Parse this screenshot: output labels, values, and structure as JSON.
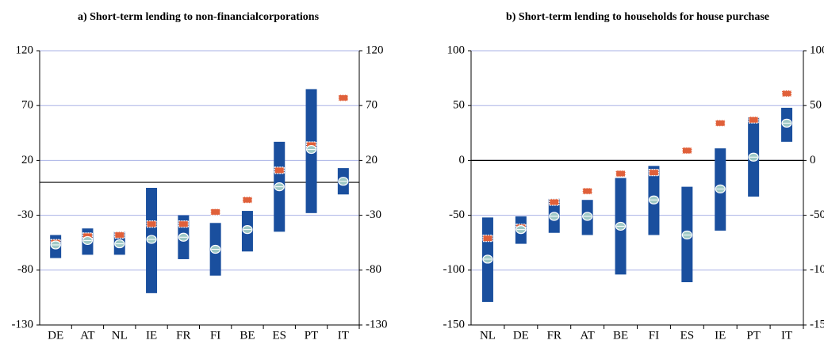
{
  "chart_data": [
    {
      "type": "range-bar",
      "title": "a) Short-term lending to non-financialcorporations",
      "categories": [
        "DE",
        "AT",
        "NL",
        "IE",
        "FR",
        "FI",
        "BE",
        "ES",
        "PT",
        "IT"
      ],
      "high": [
        -48,
        -42,
        -45,
        -5,
        -30,
        -37,
        -26,
        37,
        85,
        13
      ],
      "low": [
        -69,
        -66,
        -66,
        -101,
        -70,
        -85,
        -63,
        -45,
        -28,
        -11
      ],
      "bar_color": "#1a4f9e",
      "circle": {
        "color": "#9fc9c6",
        "values": [
          -57,
          -53,
          -56,
          -52,
          -50,
          -61,
          -43,
          -4,
          30,
          1
        ]
      },
      "marker": {
        "color": "#e0603a",
        "values": [
          -55,
          -49,
          -48,
          -38,
          -38,
          -27,
          -16,
          11,
          34,
          77
        ]
      },
      "ylim": [
        -130,
        120
      ],
      "yticks": [
        120,
        70,
        20,
        -30,
        -80,
        -130
      ],
      "grid": true
    },
    {
      "type": "range-bar",
      "title": "b) Short-term lending to households for house purchase",
      "categories": [
        "NL",
        "DE",
        "FR",
        "AT",
        "BE",
        "FI",
        "ES",
        "IE",
        "PT",
        "IT"
      ],
      "high": [
        -52,
        -51,
        -35,
        -36,
        -16,
        -5,
        -24,
        11,
        39,
        48
      ],
      "low": [
        -129,
        -76,
        -66,
        -68,
        -104,
        -68,
        -111,
        -64,
        -33,
        17
      ],
      "bar_color": "#1a4f9e",
      "circle": {
        "color": "#9fc9c6",
        "values": [
          -90,
          -63,
          -51,
          -51,
          -60,
          -36,
          -68,
          -26,
          3,
          34
        ]
      },
      "marker": {
        "color": "#e0603a",
        "values": [
          -71,
          -61,
          -38,
          -28,
          -12,
          -11,
          9,
          34,
          37,
          61
        ]
      },
      "ylim": [
        -150,
        100
      ],
      "yticks": [
        100,
        50,
        0,
        -50,
        -100,
        -150
      ],
      "grid": true
    }
  ]
}
